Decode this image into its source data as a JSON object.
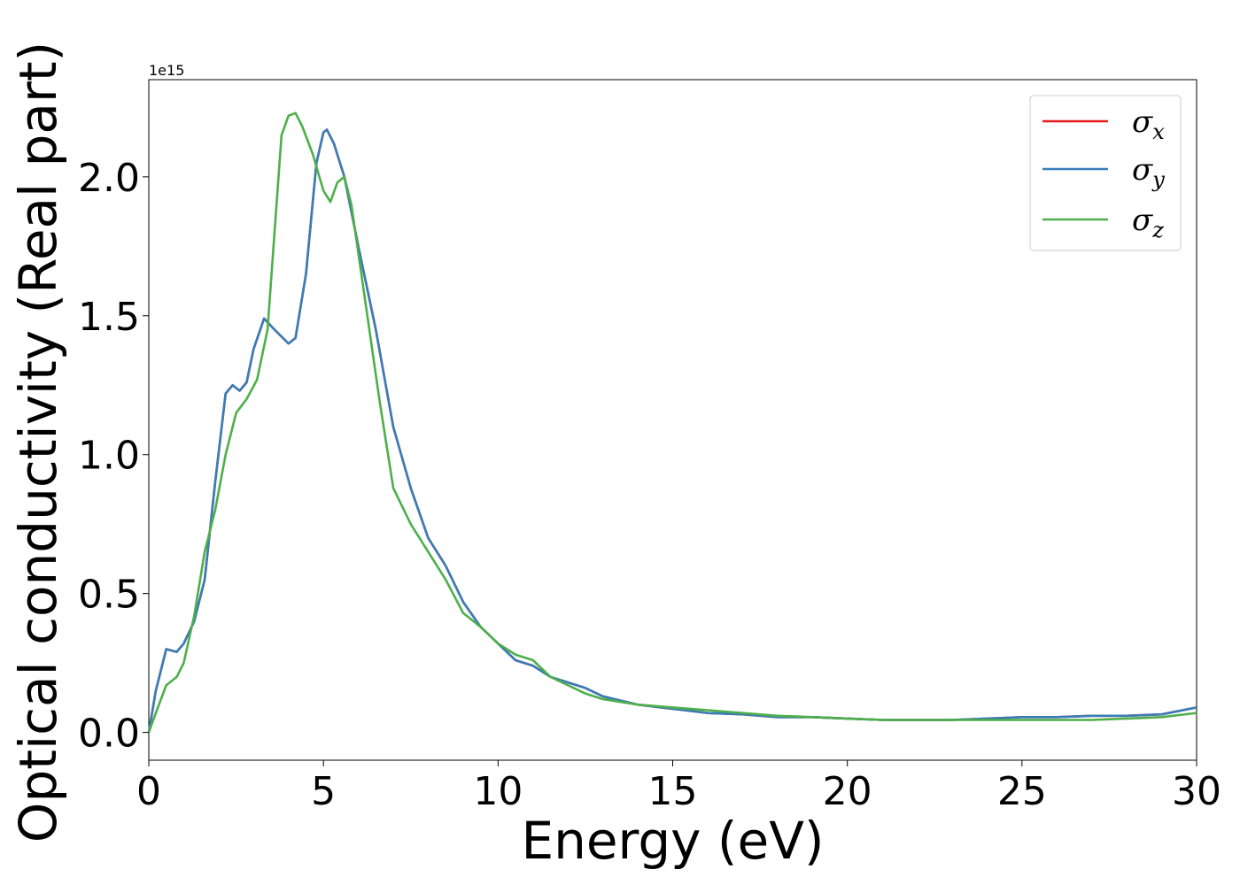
{
  "chart_data": {
    "type": "line",
    "xlabel": "Energy (eV)",
    "ylabel": "Optical conductivity (Real part)",
    "y_offset_text": "1e15",
    "xlim": [
      0,
      30
    ],
    "ylim": [
      -0.1,
      2.35
    ],
    "y_scale_factor": 1000000000000000.0,
    "xticks": [
      0,
      5,
      10,
      15,
      20,
      25,
      30
    ],
    "xtick_labels": [
      "0",
      "5",
      "10",
      "15",
      "20",
      "25",
      "30"
    ],
    "yticks": [
      0.0,
      0.5,
      1.0,
      1.5,
      2.0
    ],
    "ytick_labels": [
      "0.0",
      "0.5",
      "1.0",
      "1.5",
      "2.0"
    ],
    "grid": false,
    "legend_position": "top-right",
    "legend_symbol": "σ",
    "series": [
      {
        "name": "σx",
        "subscript": "x",
        "color": "#e41a1c",
        "x": [
          0,
          0.2,
          0.5,
          0.8,
          1.0,
          1.3,
          1.6,
          1.9,
          2.2,
          2.4,
          2.6,
          2.8,
          3.0,
          3.3,
          3.6,
          4.0,
          4.2,
          4.5,
          4.8,
          5.0,
          5.1,
          5.3,
          5.6,
          6.0,
          6.5,
          7.0,
          7.5,
          8.0,
          8.5,
          9.0,
          9.5,
          10.0,
          10.5,
          11.0,
          11.5,
          12.0,
          12.5,
          13.0,
          14.0,
          15.0,
          16.0,
          17.0,
          18.0,
          19.0,
          20.0,
          21.0,
          22.0,
          23.0,
          24.0,
          25.0,
          26.0,
          27.0,
          28.0,
          29.0,
          30.0
        ],
        "y": [
          0.0,
          0.15,
          0.3,
          0.29,
          0.32,
          0.4,
          0.55,
          0.9,
          1.22,
          1.25,
          1.23,
          1.26,
          1.38,
          1.49,
          1.45,
          1.4,
          1.42,
          1.65,
          2.05,
          2.16,
          2.17,
          2.12,
          2.0,
          1.75,
          1.45,
          1.1,
          0.88,
          0.7,
          0.6,
          0.47,
          0.38,
          0.32,
          0.26,
          0.24,
          0.2,
          0.18,
          0.16,
          0.13,
          0.1,
          0.085,
          0.07,
          0.065,
          0.055,
          0.055,
          0.05,
          0.045,
          0.045,
          0.045,
          0.05,
          0.055,
          0.055,
          0.06,
          0.06,
          0.065,
          0.09
        ]
      },
      {
        "name": "σy",
        "subscript": "y",
        "color": "#377eb8",
        "x": [
          0,
          0.2,
          0.5,
          0.8,
          1.0,
          1.3,
          1.6,
          1.9,
          2.2,
          2.4,
          2.6,
          2.8,
          3.0,
          3.3,
          3.6,
          4.0,
          4.2,
          4.5,
          4.8,
          5.0,
          5.1,
          5.3,
          5.6,
          6.0,
          6.5,
          7.0,
          7.5,
          8.0,
          8.5,
          9.0,
          9.5,
          10.0,
          10.5,
          11.0,
          11.5,
          12.0,
          12.5,
          13.0,
          14.0,
          15.0,
          16.0,
          17.0,
          18.0,
          19.0,
          20.0,
          21.0,
          22.0,
          23.0,
          24.0,
          25.0,
          26.0,
          27.0,
          28.0,
          29.0,
          30.0
        ],
        "y": [
          0.0,
          0.15,
          0.3,
          0.29,
          0.32,
          0.4,
          0.55,
          0.9,
          1.22,
          1.25,
          1.23,
          1.26,
          1.38,
          1.49,
          1.45,
          1.4,
          1.42,
          1.65,
          2.05,
          2.16,
          2.17,
          2.12,
          2.0,
          1.75,
          1.45,
          1.1,
          0.88,
          0.7,
          0.6,
          0.47,
          0.38,
          0.32,
          0.26,
          0.24,
          0.2,
          0.18,
          0.16,
          0.13,
          0.1,
          0.085,
          0.07,
          0.065,
          0.055,
          0.055,
          0.05,
          0.045,
          0.045,
          0.045,
          0.05,
          0.055,
          0.055,
          0.06,
          0.06,
          0.065,
          0.09
        ]
      },
      {
        "name": "σz",
        "subscript": "z",
        "color": "#4daf4a",
        "x": [
          0,
          0.2,
          0.5,
          0.8,
          1.0,
          1.3,
          1.6,
          1.9,
          2.2,
          2.5,
          2.8,
          3.1,
          3.4,
          3.6,
          3.8,
          4.0,
          4.2,
          4.4,
          4.7,
          5.0,
          5.2,
          5.4,
          5.6,
          5.8,
          6.2,
          6.6,
          7.0,
          7.5,
          8.0,
          8.5,
          9.0,
          9.5,
          10.0,
          10.5,
          11.0,
          11.5,
          12.0,
          12.5,
          13.0,
          14.0,
          15.0,
          16.0,
          17.0,
          18.0,
          19.0,
          20.0,
          21.0,
          22.0,
          23.0,
          24.0,
          25.0,
          26.0,
          27.0,
          28.0,
          29.0,
          30.0
        ],
        "y": [
          0.0,
          0.07,
          0.17,
          0.2,
          0.25,
          0.42,
          0.65,
          0.8,
          1.0,
          1.15,
          1.2,
          1.27,
          1.45,
          1.8,
          2.15,
          2.22,
          2.23,
          2.18,
          2.08,
          1.95,
          1.91,
          1.98,
          2.0,
          1.9,
          1.55,
          1.2,
          0.88,
          0.75,
          0.65,
          0.55,
          0.43,
          0.38,
          0.32,
          0.28,
          0.26,
          0.2,
          0.17,
          0.14,
          0.12,
          0.1,
          0.09,
          0.08,
          0.07,
          0.06,
          0.055,
          0.05,
          0.045,
          0.045,
          0.045,
          0.045,
          0.045,
          0.045,
          0.045,
          0.05,
          0.055,
          0.07
        ]
      }
    ]
  }
}
